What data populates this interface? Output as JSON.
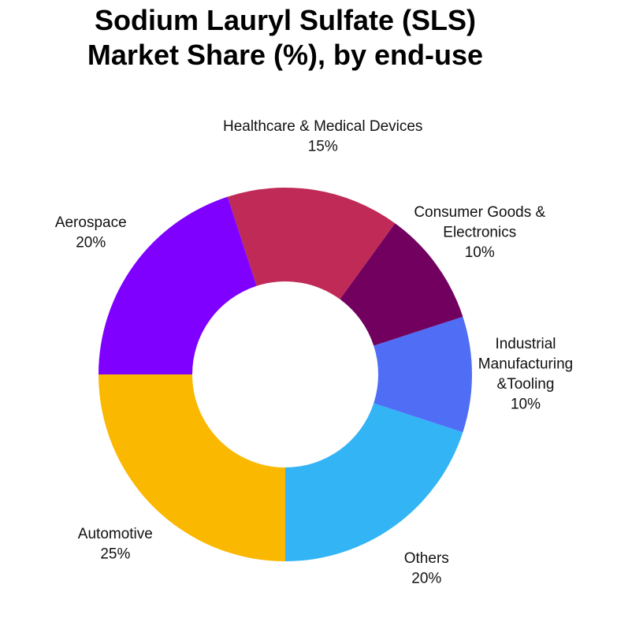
{
  "chart_data": {
    "type": "donut",
    "title": "Sodium Lauryl Sulfate (SLS)\nMarket Share (%), by end-use",
    "categories": [
      "Automotive",
      "Others",
      "Industrial\nManufacturing\n&Tooling",
      "Consumer Goods &\nElectronics",
      "Healthcare & Medical Devices",
      "Aerospace"
    ],
    "values": [
      25,
      20,
      10,
      10,
      15,
      20
    ],
    "value_labels": [
      "25%",
      "20%",
      "10%",
      "10%",
      "15%",
      "20%"
    ],
    "colors": [
      "#fbb800",
      "#33b4f5",
      "#4f6ef5",
      "#72005f",
      "#c02a57",
      "#7f00ff"
    ]
  }
}
